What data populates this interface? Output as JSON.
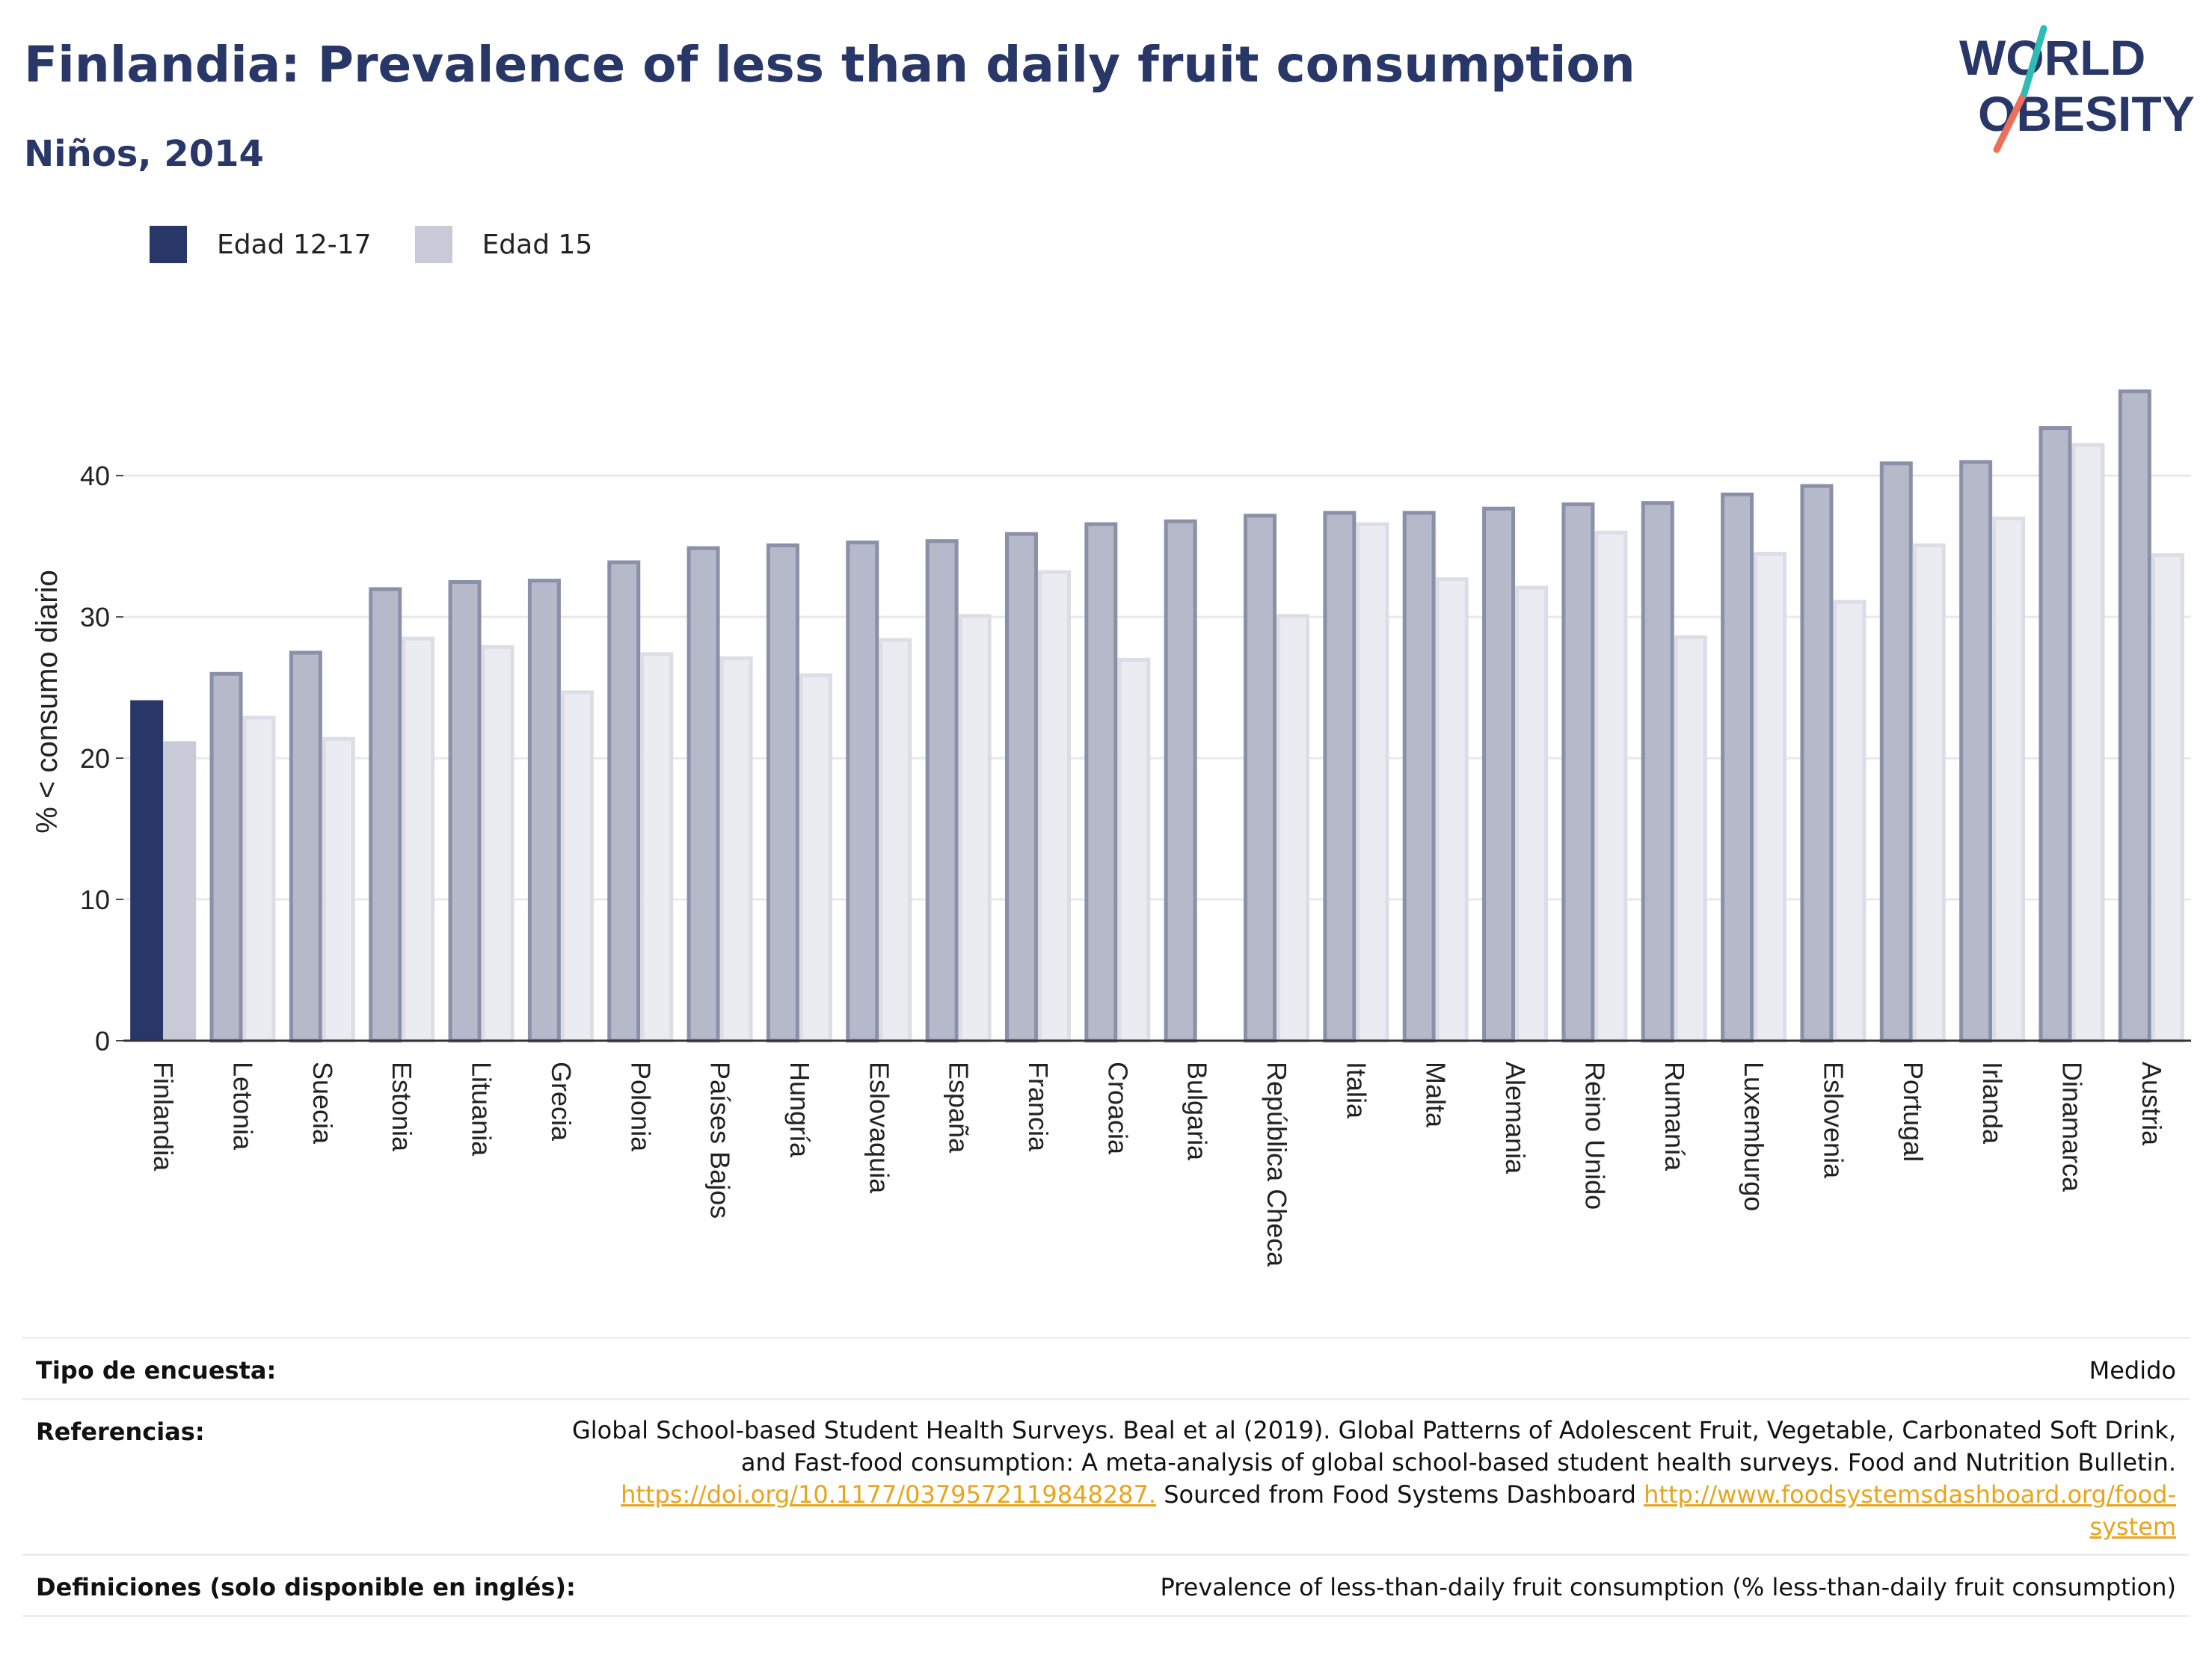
{
  "header": {
    "title": "Finlandia: Prevalence of less than daily fruit consumption",
    "subtitle": "Niños, 2014",
    "logo_line1": "WORLD",
    "logo_line2": "OBESITY"
  },
  "colors": {
    "title": "#283767",
    "highlight_primary": "#283767",
    "highlight_secondary": "#c8cad7",
    "other_primary_fill": "#b5b9c9",
    "other_primary_stroke": "#8a90a9",
    "other_secondary_fill": "#ebecf1",
    "other_secondary_stroke": "#dcdde5",
    "logo_accent_teal": "#2ebdb4",
    "logo_accent_coral": "#ef6e5a",
    "link": "#e8a51b"
  },
  "chart_data": {
    "type": "bar",
    "ylabel": "% < consumo diario",
    "ylim": [
      0,
      48
    ],
    "yticks": [
      0,
      10,
      20,
      30,
      40
    ],
    "grid": true,
    "legend_position": "top-left",
    "highlight_category": "Finlandia",
    "categories": [
      "Finlandia",
      "Letonia",
      "Suecia",
      "Estonia",
      "Lituania",
      "Grecia",
      "Polonia",
      "Países Bajos",
      "Hungría",
      "Eslovaquia",
      "España",
      "Francia",
      "Croacia",
      "Bulgaria",
      "República Checa",
      "Italia",
      "Malta",
      "Alemania",
      "Reino Unido",
      "Rumanía",
      "Luxemburgo",
      "Eslovenia",
      "Portugal",
      "Irlanda",
      "Dinamarca",
      "Austria"
    ],
    "series": [
      {
        "name": "Edad 12-17",
        "values": [
          24.1,
          26.1,
          27.6,
          32.1,
          32.6,
          32.7,
          34.0,
          35.0,
          35.2,
          35.4,
          35.5,
          36.0,
          36.7,
          36.9,
          37.3,
          37.5,
          37.5,
          37.8,
          38.1,
          38.2,
          38.8,
          39.4,
          41.0,
          41.1,
          43.5,
          46.1
        ]
      },
      {
        "name": "Edad 15",
        "values": [
          21.2,
          23.0,
          21.5,
          28.6,
          28.0,
          24.8,
          27.5,
          27.2,
          26.0,
          28.5,
          30.2,
          33.3,
          27.1,
          null,
          30.2,
          36.7,
          32.8,
          32.2,
          36.1,
          28.7,
          34.6,
          31.2,
          35.2,
          37.1,
          42.3,
          34.5
        ]
      }
    ]
  },
  "footer": {
    "survey_label": "Tipo de encuesta:",
    "survey_value": "Medido",
    "references_label": "Referencias:",
    "references_line1": "Global School-based Student Health Surveys. Beal et al (2019). Global Patterns of Adolescent Fruit, Vegetable, Carbonated Soft Drink,",
    "references_line2": "and Fast-food consumption: A meta-analysis of global school-based student health surveys. Food and Nutrition Bulletin.",
    "references_link1": "https://doi.org/10.1177/0379572119848287.",
    "references_mid": " Sourced from Food Systems Dashboard ",
    "references_link2a": "http://www.foodsystemsdashboard.org/food-",
    "references_link2b": "system",
    "definitions_label": "Definiciones (solo disponible en inglés):",
    "definitions_value": "Prevalence of less-than-daily fruit consumption (% less-than-daily fruit consumption)"
  }
}
